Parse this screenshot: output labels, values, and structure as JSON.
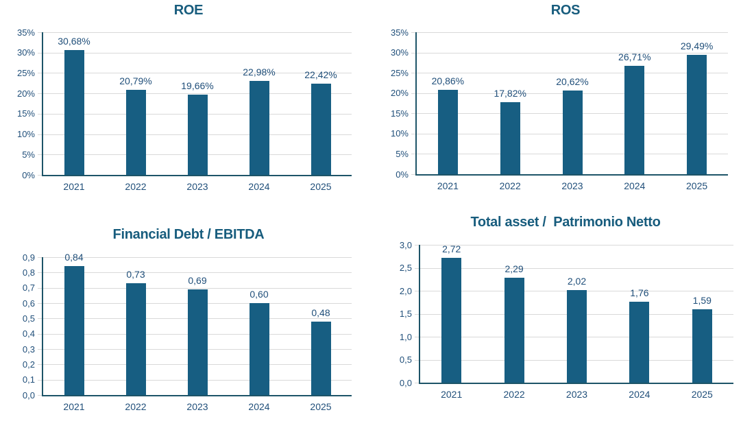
{
  "page": {
    "background": "#FFFFFF"
  },
  "colors": {
    "bar": "#175E82",
    "axis": "#1D5468",
    "grid": "#D9D9D9",
    "text": "#1F4E79",
    "title": "#175C7D",
    "background": "#FFFFFF"
  },
  "chart_data": [
    {
      "type": "bar",
      "title": "ROE",
      "categories": [
        "2021",
        "2022",
        "2023",
        "2024",
        "2025"
      ],
      "values": [
        30.68,
        20.79,
        19.66,
        22.98,
        22.42
      ],
      "value_labels": [
        "30,68%",
        "20,79%",
        "19,66%",
        "22,98%",
        "22,42%"
      ],
      "ylim": [
        0,
        35
      ],
      "ytick_step": 5,
      "ytick_labels": [
        "0%",
        "5%",
        "10%",
        "15%",
        "20%",
        "25%",
        "30%",
        "35%"
      ],
      "xlabel": "",
      "ylabel": "",
      "grid": true,
      "legend": "none"
    },
    {
      "type": "bar",
      "title": "ROS",
      "categories": [
        "2021",
        "2022",
        "2023",
        "2024",
        "2025"
      ],
      "values": [
        20.86,
        17.82,
        20.62,
        26.71,
        29.49
      ],
      "value_labels": [
        "20,86%",
        "17,82%",
        "20,62%",
        "26,71%",
        "29,49%"
      ],
      "ylim": [
        0,
        35
      ],
      "ytick_step": 5,
      "ytick_labels": [
        "0%",
        "5%",
        "10%",
        "15%",
        "20%",
        "25%",
        "30%",
        "35%"
      ],
      "xlabel": "",
      "ylabel": "",
      "grid": true,
      "legend": "none"
    },
    {
      "type": "bar",
      "title": "Financial Debt / EBITDA",
      "categories": [
        "2021",
        "2022",
        "2023",
        "2024",
        "2025"
      ],
      "values": [
        0.84,
        0.73,
        0.69,
        0.6,
        0.48
      ],
      "value_labels": [
        "0,84",
        "0,73",
        "0,69",
        "0,60",
        "0,48"
      ],
      "ylim": [
        0,
        0.9
      ],
      "ytick_step": 0.1,
      "ytick_labels": [
        "0,0",
        "0,1",
        "0,2",
        "0,3",
        "0,4",
        "0,5",
        "0,6",
        "0,7",
        "0,8",
        "0,9"
      ],
      "xlabel": "",
      "ylabel": "",
      "grid": true,
      "legend": "none"
    },
    {
      "type": "bar",
      "title": "Total asset /  Patrimonio Netto",
      "categories": [
        "2021",
        "2022",
        "2023",
        "2024",
        "2025"
      ],
      "values": [
        2.72,
        2.29,
        2.02,
        1.76,
        1.59
      ],
      "value_labels": [
        "2,72",
        "2,29",
        "2,02",
        "1,76",
        "1,59"
      ],
      "ylim": [
        0,
        3.0
      ],
      "ytick_step": 0.5,
      "ytick_labels": [
        "0,0",
        "0,5",
        "1,0",
        "1,5",
        "2,0",
        "2,5",
        "3,0"
      ],
      "xlabel": "",
      "ylabel": "",
      "grid": true,
      "legend": "none"
    }
  ]
}
